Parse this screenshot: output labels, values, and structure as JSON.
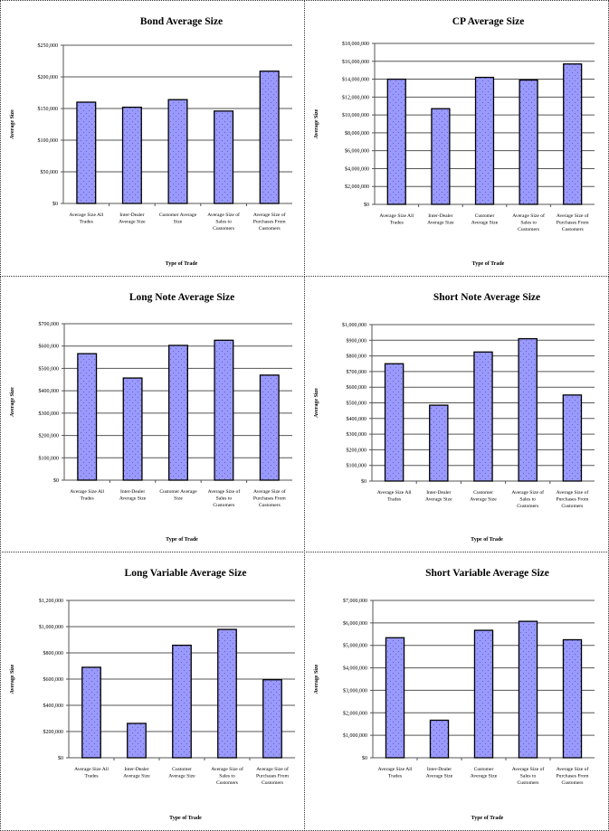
{
  "page": {
    "background": "#ffffff",
    "bar_color": "#9999ff",
    "bar_dot_color": "#6666aa",
    "border_color": "#000000"
  },
  "chart_data": [
    {
      "type": "bar",
      "title": "Bond Average Size",
      "xlabel": "Type of Trade",
      "ylabel": "Average Size",
      "categories": [
        "Average Size All Trades",
        "Inter-Dealer Average Size",
        "Customer Average Size",
        "Average Size of Sales to Customers",
        "Average Size of Purchases From Customers"
      ],
      "category_lines": [
        [
          "Average  Size All",
          "Trades"
        ],
        [
          "Inter-Dealer",
          "Average  Size"
        ],
        [
          "Customer Average",
          "Size"
        ],
        [
          "Average  Size of",
          "Sales to",
          "Customers"
        ],
        [
          "Average  Size of",
          "Purchases  From",
          "Customers"
        ]
      ],
      "values": [
        160000,
        152000,
        164000,
        146000,
        209000
      ],
      "ylim": [
        0,
        250000
      ],
      "yticks": [
        0,
        50000,
        100000,
        150000,
        200000,
        250000
      ],
      "ytick_labels": [
        "$0",
        "$50,000",
        "$100,000",
        "$150,000",
        "$200,000",
        "$250,000"
      ],
      "grid": true,
      "legend": "none"
    },
    {
      "type": "bar",
      "title": "CP Average Size",
      "xlabel": "Type of Trade",
      "ylabel": "Average Size",
      "categories": [
        "Average Size All Trades",
        "Inter-Dealer Average Size",
        "Customer Average Size",
        "Average Size of Sales to Customers",
        "Average Size of Purchases From Customers"
      ],
      "category_lines": [
        [
          "Average  Size All",
          "Trades"
        ],
        [
          "Inter-Dealer",
          "Average  Size"
        ],
        [
          "Customer",
          "Average  Size"
        ],
        [
          "Average  Size of",
          "Sales to",
          "Customers"
        ],
        [
          "Average  Size of",
          "Purchases  From",
          "Customers"
        ]
      ],
      "values": [
        14000000,
        10700000,
        14200000,
        13900000,
        15700000
      ],
      "ylim": [
        0,
        18000000
      ],
      "yticks": [
        0,
        2000000,
        4000000,
        6000000,
        8000000,
        10000000,
        12000000,
        14000000,
        16000000,
        18000000
      ],
      "ytick_labels": [
        "$0",
        "$2,000,000",
        "$4,000,000",
        "$6,000,000",
        "$8,000,000",
        "$10,000,000",
        "$12,000,000",
        "$14,000,000",
        "$16,000,000",
        "$18,000,000"
      ],
      "grid": true,
      "legend": "none"
    },
    {
      "type": "bar",
      "title": "Long Note Average Size",
      "xlabel": "Type of Trade",
      "ylabel": "Average Size",
      "categories": [
        "Average Size All Trades",
        "Inter-Dealer Average Size",
        "Customer Average Size",
        "Average Size of Sales to Customers",
        "Average Size of Purchases From Customers"
      ],
      "category_lines": [
        [
          "Average  Size All",
          "Trades"
        ],
        [
          "Inter-Dealer",
          "Average  Size"
        ],
        [
          "Customer Average",
          "Size"
        ],
        [
          "Average  Size of",
          "Sales to",
          "Customers"
        ],
        [
          "Average  Size of",
          "Purchases  From",
          "Customers"
        ]
      ],
      "values": [
        566000,
        457000,
        603000,
        626000,
        470000
      ],
      "ylim": [
        0,
        700000
      ],
      "yticks": [
        0,
        100000,
        200000,
        300000,
        400000,
        500000,
        600000,
        700000
      ],
      "ytick_labels": [
        "$0",
        "$100,000",
        "$200,000",
        "$300,000",
        "$400,000",
        "$500,000",
        "$600,000",
        "$700,000"
      ],
      "grid": true,
      "legend": "none"
    },
    {
      "type": "bar",
      "title": "Short Note Average Size",
      "xlabel": "Type of Trade",
      "ylabel": "Average Size",
      "categories": [
        "Average Size All Trades",
        "Inter-Dealer Average Size",
        "Customer Average Size",
        "Average Size of Sales to Customers",
        "Average Size of Purchases From Customers"
      ],
      "category_lines": [
        [
          "Average  Size All",
          "Trades"
        ],
        [
          "Inter-Dealer",
          "Average  Size"
        ],
        [
          "Customer",
          "Average  Size"
        ],
        [
          "Average  Size of",
          "Sales to",
          "Customers"
        ],
        [
          "Average  Size of",
          "Purchases  From",
          "Customers"
        ]
      ],
      "values": [
        750000,
        485000,
        825000,
        910000,
        550000
      ],
      "ylim": [
        0,
        1000000
      ],
      "yticks": [
        0,
        100000,
        200000,
        300000,
        400000,
        500000,
        600000,
        700000,
        800000,
        900000,
        1000000
      ],
      "ytick_labels": [
        "$0",
        "$100,000",
        "$200,000",
        "$300,000",
        "$400,000",
        "$500,000",
        "$600,000",
        "$700,000",
        "$800,000",
        "$900,000",
        "$1,000,000"
      ],
      "grid": true,
      "legend": "none"
    },
    {
      "type": "bar",
      "title": "Long Variable Average Size",
      "xlabel": "Type of Trade",
      "ylabel": "Average Size",
      "categories": [
        "Average Size All Trades",
        "Inter-Dealer Average Size",
        "Customer Average Size",
        "Average Size of Sales to Customers",
        "Average Size of Purchases From Customers"
      ],
      "category_lines": [
        [
          "Average  Size All",
          "Trades"
        ],
        [
          "Inter-Dealer",
          "Average  Size"
        ],
        [
          "Customer",
          "Average  Size"
        ],
        [
          "Average  Size of",
          "Sales to",
          "Customers"
        ],
        [
          "Average  Size of",
          "Purchases  From",
          "Customers"
        ]
      ],
      "values": [
        690000,
        262000,
        858000,
        979000,
        595000
      ],
      "ylim": [
        0,
        1200000
      ],
      "yticks": [
        0,
        200000,
        400000,
        600000,
        800000,
        1000000,
        1200000
      ],
      "ytick_labels": [
        "$0",
        "$200,000",
        "$400,000",
        "$600,000",
        "$800,000",
        "$1,000,000",
        "$1,200,000"
      ],
      "grid": true,
      "legend": "none"
    },
    {
      "type": "bar",
      "title": "Short Variable Average Size",
      "xlabel": "Type of Trade",
      "ylabel": "Average Size",
      "categories": [
        "Average Size All Trades",
        "Inter-Dealer Average Size",
        "Customer Average Size",
        "Average Size of Sales to Customers",
        "Average Size of Purchases From Customers"
      ],
      "category_lines": [
        [
          "Average  Size All",
          "Trades"
        ],
        [
          "Inter-Dealer",
          "Average  Size"
        ],
        [
          "Customer",
          "Average  Size"
        ],
        [
          "Average  Size of",
          "Sales to",
          "Customers"
        ],
        [
          "Average  Size of",
          "Purchases  From",
          "Customers"
        ]
      ],
      "values": [
        5340000,
        1670000,
        5670000,
        6070000,
        5250000
      ],
      "ylim": [
        0,
        7000000
      ],
      "yticks": [
        0,
        1000000,
        2000000,
        3000000,
        4000000,
        5000000,
        6000000,
        7000000
      ],
      "ytick_labels": [
        "$0",
        "$1,000,000",
        "$2,000,000",
        "$3,000,000",
        "$4,000,000",
        "$5,000,000",
        "$6,000,000",
        "$7,000,000"
      ],
      "grid": true,
      "legend": "none"
    }
  ]
}
